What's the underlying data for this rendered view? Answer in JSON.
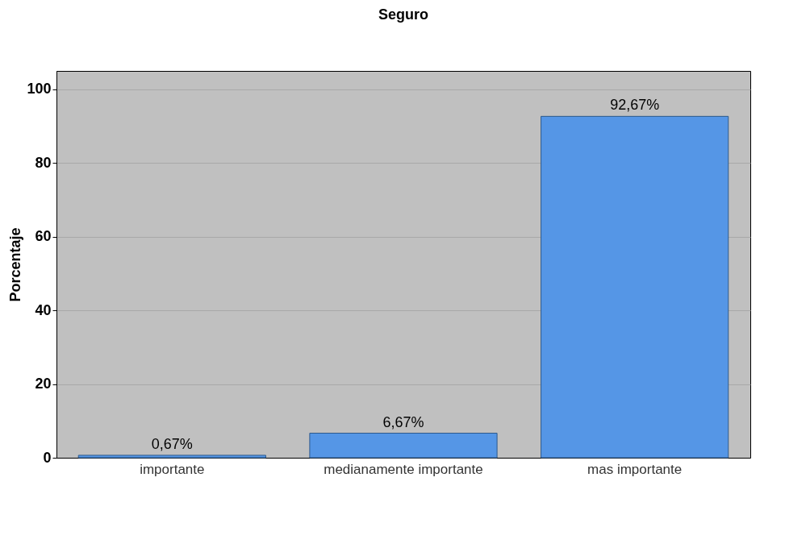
{
  "chart_data": {
    "type": "bar",
    "title": "Seguro",
    "ylabel": "Porcentaje",
    "categories": [
      "importante",
      "medianamente importante",
      "mas importante"
    ],
    "values": [
      0.67,
      6.67,
      92.67
    ],
    "value_labels": [
      "0,67%",
      "6,67%",
      "92,67%"
    ],
    "color": "#5596e6",
    "ylim": [
      0,
      105
    ],
    "yticks": [
      0,
      20,
      40,
      60,
      80,
      100
    ],
    "grid": "y"
  }
}
